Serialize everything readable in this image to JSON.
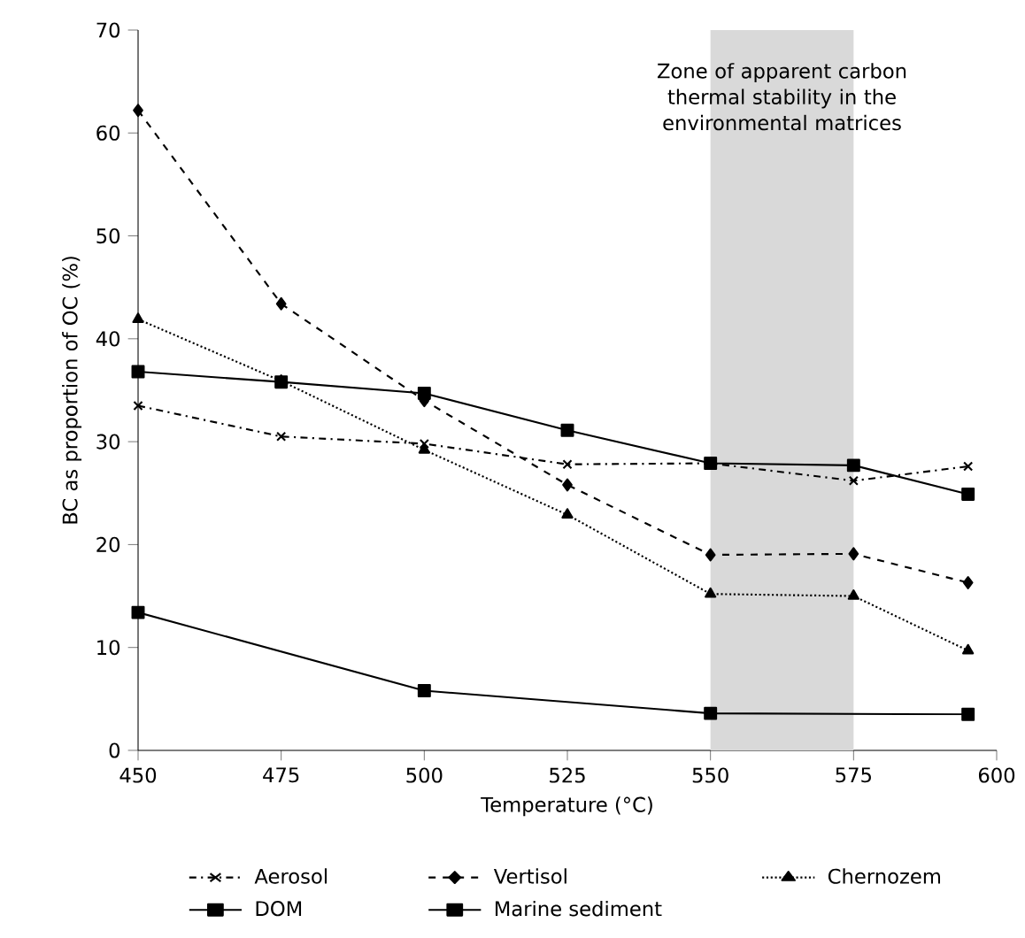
{
  "chart_data": {
    "type": "line",
    "xlabel": "Temperature (°C)",
    "ylabel": "BC  as proportion of OC (%)",
    "x": [
      450,
      475,
      500,
      525,
      550,
      575,
      595
    ],
    "xlim": [
      450,
      600
    ],
    "xticks": [
      450,
      475,
      500,
      525,
      550,
      575,
      600
    ],
    "ylim": [
      0,
      70
    ],
    "yticks": [
      0,
      10,
      20,
      30,
      40,
      50,
      60,
      70
    ],
    "grid": false,
    "legend": "bottom",
    "bands": [
      {
        "axis": "x",
        "from": 550,
        "to": 575,
        "label": "Zone of apparent carbon thermal stability in the environmental matrices",
        "color": "#d9d9d9"
      }
    ],
    "series": [
      {
        "name": "Aerosol",
        "color": "#000000",
        "marker": "cross",
        "line_style": "dashdot",
        "values": [
          33.5,
          30.5,
          29.8,
          27.8,
          27.9,
          26.2,
          27.6
        ]
      },
      {
        "name": "Vertisol",
        "color": "#000000",
        "marker": "diamond",
        "line_style": "dashed",
        "values": [
          62.2,
          43.4,
          34.0,
          25.8,
          19.0,
          19.1,
          16.3
        ]
      },
      {
        "name": "Chernozem",
        "color": "#000000",
        "marker": "triangle",
        "line_style": "dotted",
        "values": [
          41.9,
          35.9,
          29.2,
          22.9,
          15.2,
          15.0,
          9.7
        ]
      },
      {
        "name": "DOM",
        "color": "#000000",
        "marker": "square",
        "line_style": "solid",
        "x": [
          450,
          500,
          550,
          595
        ],
        "values": [
          13.4,
          5.8,
          3.6,
          3.5
        ]
      },
      {
        "name": "Marine sediment",
        "color": "#000000",
        "marker": "square",
        "line_style": "solid",
        "values": [
          36.8,
          35.8,
          34.7,
          31.1,
          27.9,
          27.7,
          24.9
        ]
      }
    ]
  }
}
